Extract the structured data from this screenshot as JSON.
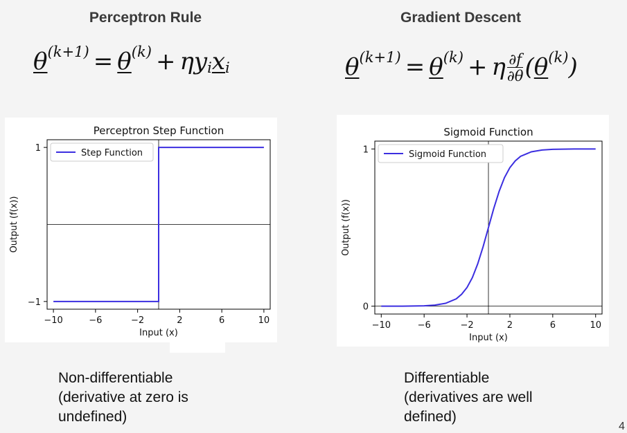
{
  "columns": {
    "left": {
      "title": "Perceptron Rule",
      "caption_lines": [
        "Non-differentiable",
        "(derivative at zero is",
        "undefined)"
      ]
    },
    "right": {
      "title": "Gradient Descent",
      "caption_lines": [
        "Differentiable",
        "(derivatives are well",
        "defined)"
      ]
    }
  },
  "formulas": {
    "left": {
      "theta": "θ",
      "sup_next": "(k+1)",
      "equals": "=",
      "sup_k": "(k)",
      "plus": "+",
      "eta": "η",
      "y": "y",
      "sub_i": "i",
      "x": "x",
      "sub_i2": "i"
    },
    "right": {
      "theta": "θ",
      "sup_next": "(k+1)",
      "equals": "=",
      "sup_k": "(k)",
      "plus": "+",
      "eta": "η",
      "frac_num": "∂f",
      "frac_den": "∂θ",
      "paren_open": "(",
      "paren_close": ")"
    }
  },
  "page_number": "4",
  "chart_data": [
    {
      "type": "line",
      "title": "Perceptron Step Function",
      "xlabel": "Input (x)",
      "ylabel": "Output (f(x))",
      "xlim": [
        -10.6,
        10.6
      ],
      "ylim": [
        -1.1,
        1.1
      ],
      "xticks": [
        -10,
        -6,
        -2,
        2,
        6,
        10
      ],
      "xtick_labels": [
        "−10",
        "−6",
        "−2",
        "2",
        "6",
        "10"
      ],
      "yticks": [
        -1,
        1
      ],
      "ytick_labels": [
        "−1",
        "1"
      ],
      "reference_lines": {
        "x": 0,
        "y": 0
      },
      "legend": {
        "position": "top-left"
      },
      "series": [
        {
          "name": "Step Function",
          "color": "#3b2ee0",
          "x": [
            -10,
            0,
            0,
            10
          ],
          "y": [
            -1,
            -1,
            1,
            1
          ]
        }
      ]
    },
    {
      "type": "line",
      "title": "Sigmoid Function",
      "xlabel": "Input (x)",
      "ylabel": "Output (f(x))",
      "xlim": [
        -10.6,
        10.6
      ],
      "ylim": [
        -0.05,
        1.05
      ],
      "xticks": [
        -10,
        -6,
        -2,
        2,
        6,
        10
      ],
      "xtick_labels": [
        "−10",
        "−6",
        "−2",
        "2",
        "6",
        "10"
      ],
      "yticks": [
        0,
        1
      ],
      "ytick_labels": [
        "0",
        "1"
      ],
      "reference_lines": {
        "x": 0,
        "y": 0
      },
      "legend": {
        "position": "top-left"
      },
      "series": [
        {
          "name": "Sigmoid Function",
          "color": "#3b2ee0",
          "x": [
            -10,
            -9,
            -8,
            -7,
            -6,
            -5,
            -4,
            -3,
            -2.5,
            -2,
            -1.5,
            -1,
            -0.5,
            0,
            0.5,
            1,
            1.5,
            2,
            2.5,
            3,
            4,
            5,
            6,
            7,
            8,
            9,
            10
          ],
          "y": [
            5e-05,
            0.0001,
            0.0003,
            0.0009,
            0.0025,
            0.0067,
            0.018,
            0.047,
            0.076,
            0.119,
            0.182,
            0.269,
            0.378,
            0.5,
            0.622,
            0.731,
            0.818,
            0.881,
            0.924,
            0.953,
            0.982,
            0.9933,
            0.9975,
            0.9991,
            0.9997,
            0.9999,
            0.99995
          ]
        }
      ]
    }
  ]
}
